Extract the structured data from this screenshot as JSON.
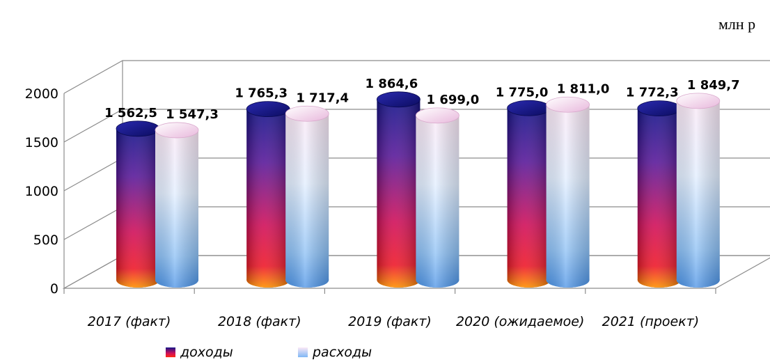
{
  "chart_data": {
    "type": "bar",
    "unit_label": "млн р",
    "categories": [
      "2017 (факт)",
      "2018 (факт)",
      "2019 (факт)",
      "2020 (ожидаемое)",
      "2021 (проект)"
    ],
    "series": [
      {
        "name": "доходы",
        "values": [
          1562.5,
          1765.3,
          1864.6,
          1775.0,
          1772.3
        ],
        "labels": [
          "1 562,5",
          "1 765,3",
          "1 864,6",
          "1 775,0",
          "1 772,3"
        ],
        "color_top": "#1a1a8c",
        "color_mid": "#8a1a9c",
        "color_low": "#e0104a",
        "color_base": "#ff7a00"
      },
      {
        "name": "расходы",
        "values": [
          1547.3,
          1717.4,
          1699.0,
          1811.0,
          1849.7
        ],
        "labels": [
          "1 547,3",
          "1 717,4",
          "1 699,0",
          "1 811,0",
          "1 849,7"
        ],
        "color_top": "#ffe6f5",
        "color_mid": "#e6f0ff",
        "color_low": "#7fb7f5",
        "color_base": "#4d95e8"
      }
    ],
    "y_ticks": [
      "0",
      "500",
      "1000",
      "1500",
      "2000"
    ],
    "ylim": [
      0,
      2000
    ],
    "grid": true,
    "legend_position": "bottom-left"
  }
}
